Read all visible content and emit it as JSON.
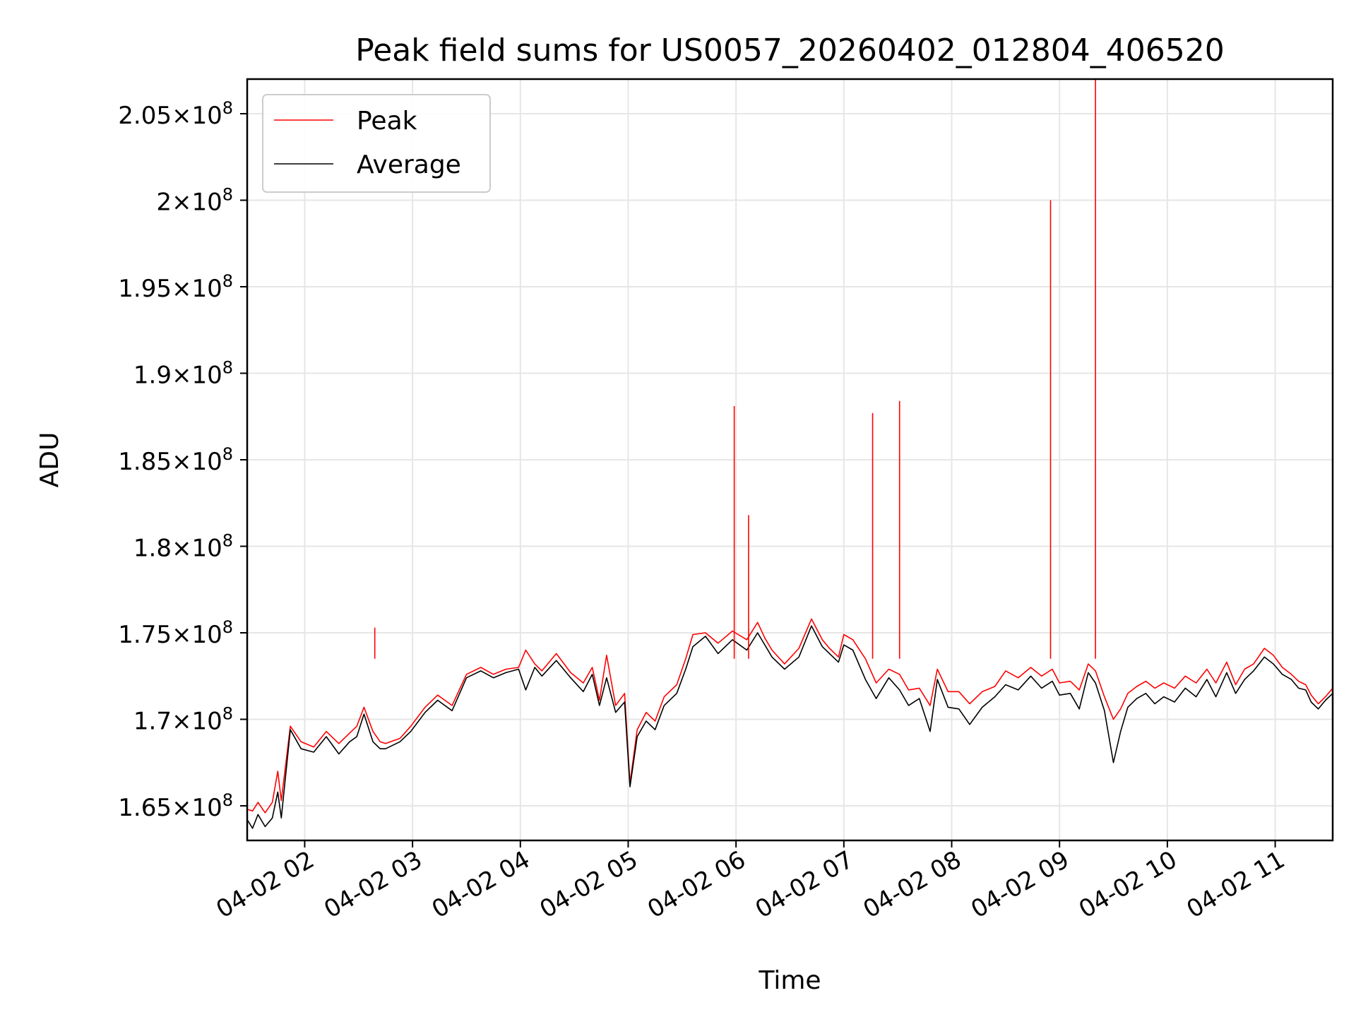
{
  "chart_data": {
    "type": "line",
    "title": "Peak field sums for US0057_20260402_012804_406520",
    "xlabel": "Time",
    "ylabel": "ADU",
    "xlim": [
      "04-02 01:28",
      "04-02 11:32"
    ],
    "ylim": [
      163000000,
      207000000
    ],
    "x_ticks": [
      {
        "value": "04-02 02:00",
        "label": "04-02 02"
      },
      {
        "value": "04-02 03:00",
        "label": "04-02 03"
      },
      {
        "value": "04-02 04:00",
        "label": "04-02 04"
      },
      {
        "value": "04-02 05:00",
        "label": "04-02 05"
      },
      {
        "value": "04-02 06:00",
        "label": "04-02 06"
      },
      {
        "value": "04-02 07:00",
        "label": "04-02 07"
      },
      {
        "value": "04-02 08:00",
        "label": "04-02 08"
      },
      {
        "value": "04-02 09:00",
        "label": "04-02 09"
      },
      {
        "value": "04-02 10:00",
        "label": "04-02 10"
      },
      {
        "value": "04-02 11:00",
        "label": "04-02 11"
      }
    ],
    "y_ticks": [
      {
        "value": 165000000,
        "mantissa": "1.65",
        "exponent": "8"
      },
      {
        "value": 170000000,
        "mantissa": "1.7",
        "exponent": "8"
      },
      {
        "value": 175000000,
        "mantissa": "1.75",
        "exponent": "8"
      },
      {
        "value": 180000000,
        "mantissa": "1.8",
        "exponent": "8"
      },
      {
        "value": 185000000,
        "mantissa": "1.85",
        "exponent": "8"
      },
      {
        "value": 190000000,
        "mantissa": "1.9",
        "exponent": "8"
      },
      {
        "value": 195000000,
        "mantissa": "1.95",
        "exponent": "8"
      },
      {
        "value": 200000000,
        "mantissa": "2",
        "exponent": "8"
      },
      {
        "value": 205000000,
        "mantissa": "2.05",
        "exponent": "8"
      }
    ],
    "grid": true,
    "legend_position": "top-left",
    "series": [
      {
        "name": "Peak",
        "color": "#ff0000",
        "x": [
          "04-02 01:28",
          "04-02 01:31",
          "04-02 01:34",
          "04-02 01:38",
          "04-02 01:42",
          "04-02 01:45",
          "04-02 01:47",
          "04-02 01:52",
          "04-02 01:58",
          "04-02 02:05",
          "04-02 02:12",
          "04-02 02:19",
          "04-02 02:25",
          "04-02 02:29",
          "04-02 02:33",
          "04-02 02:38",
          "04-02 02:42",
          "04-02 02:45",
          "04-02 02:53",
          "04-02 02:59",
          "04-02 03:07",
          "04-02 03:14",
          "04-02 03:22",
          "04-02 03:30",
          "04-02 03:38",
          "04-02 03:45",
          "04-02 03:52",
          "04-02 03:59",
          "04-02 04:03",
          "04-02 04:08",
          "04-02 04:12",
          "04-02 04:20",
          "04-02 04:28",
          "04-02 04:35",
          "04-02 04:40",
          "04-02 04:44",
          "04-02 04:48",
          "04-02 04:53",
          "04-02 04:58",
          "04-02 05:01",
          "04-02 05:05",
          "04-02 05:10",
          "04-02 05:15",
          "04-02 05:20",
          "04-02 05:27",
          "04-02 05:32",
          "04-02 05:36",
          "04-02 05:43",
          "04-02 05:50",
          "04-02 05:58",
          "04-02 06:06",
          "04-02 06:12",
          "04-02 06:16",
          "04-02 06:20",
          "04-02 06:27",
          "04-02 06:35",
          "04-02 06:42",
          "04-02 06:48",
          "04-02 06:52",
          "04-02 06:57",
          "04-02 07:00",
          "04-02 07:05",
          "04-02 07:12",
          "04-02 07:18",
          "04-02 07:25",
          "04-02 07:31",
          "04-02 07:36",
          "04-02 07:42",
          "04-02 07:48",
          "04-02 07:52",
          "04-02 07:58",
          "04-02 08:04",
          "04-02 08:10",
          "04-02 08:17",
          "04-02 08:24",
          "04-02 08:30",
          "04-02 08:37",
          "04-02 08:44",
          "04-02 08:50",
          "04-02 08:56",
          "04-02 09:00",
          "04-02 09:06",
          "04-02 09:11",
          "04-02 09:16",
          "04-02 09:20",
          "04-02 09:25",
          "04-02 09:30",
          "04-02 09:34",
          "04-02 09:38",
          "04-02 09:43",
          "04-02 09:48",
          "04-02 09:53",
          "04-02 09:58",
          "04-02 10:04",
          "04-02 10:10",
          "04-02 10:16",
          "04-02 10:22",
          "04-02 10:27",
          "04-02 10:33",
          "04-02 10:38",
          "04-02 10:43",
          "04-02 10:48",
          "04-02 10:54",
          "04-02 10:59",
          "04-02 11:04",
          "04-02 11:09",
          "04-02 11:13",
          "04-02 11:17",
          "04-02 11:20",
          "04-02 11:24",
          "04-02 11:28",
          "04-02 11:32"
        ],
        "y": [
          164800000,
          164700000,
          165200000,
          164600000,
          165200000,
          167000000,
          165300000,
          169600000,
          168700000,
          168400000,
          169300000,
          168600000,
          169200000,
          169600000,
          170700000,
          169300000,
          168700000,
          168600000,
          168900000,
          169600000,
          170700000,
          171400000,
          170800000,
          172600000,
          173000000,
          172600000,
          172900000,
          173000000,
          174000000,
          173200000,
          172800000,
          173800000,
          172700000,
          172100000,
          173000000,
          171100000,
          173700000,
          170800000,
          171500000,
          166300000,
          169400000,
          170400000,
          169900000,
          171300000,
          172000000,
          173500000,
          174900000,
          175000000,
          174400000,
          175100000,
          174600000,
          175600000,
          174700000,
          174000000,
          173200000,
          174100000,
          175800000,
          174600000,
          174100000,
          173600000,
          174900000,
          174600000,
          173500000,
          172100000,
          172900000,
          172600000,
          171700000,
          171800000,
          170800000,
          172900000,
          171600000,
          171600000,
          170900000,
          171600000,
          171900000,
          172800000,
          172400000,
          173000000,
          172500000,
          172900000,
          172100000,
          172200000,
          171700000,
          173200000,
          172800000,
          171300000,
          170000000,
          170600000,
          171500000,
          171900000,
          172200000,
          171800000,
          172100000,
          171800000,
          172500000,
          172100000,
          172900000,
          172100000,
          173300000,
          172000000,
          172900000,
          173200000,
          174100000,
          173700000,
          173000000,
          172600000,
          172200000,
          172000000,
          171400000,
          170900000,
          171300000,
          171800000
        ]
      },
      {
        "name": "Average",
        "color": "#000000",
        "x": [
          "04-02 01:28",
          "04-02 01:31",
          "04-02 01:34",
          "04-02 01:38",
          "04-02 01:42",
          "04-02 01:45",
          "04-02 01:47",
          "04-02 01:52",
          "04-02 01:58",
          "04-02 02:05",
          "04-02 02:12",
          "04-02 02:19",
          "04-02 02:25",
          "04-02 02:29",
          "04-02 02:33",
          "04-02 02:38",
          "04-02 02:42",
          "04-02 02:45",
          "04-02 02:53",
          "04-02 02:59",
          "04-02 03:07",
          "04-02 03:14",
          "04-02 03:22",
          "04-02 03:30",
          "04-02 03:38",
          "04-02 03:45",
          "04-02 03:52",
          "04-02 03:59",
          "04-02 04:03",
          "04-02 04:08",
          "04-02 04:12",
          "04-02 04:20",
          "04-02 04:28",
          "04-02 04:35",
          "04-02 04:40",
          "04-02 04:44",
          "04-02 04:48",
          "04-02 04:53",
          "04-02 04:58",
          "04-02 05:01",
          "04-02 05:05",
          "04-02 05:10",
          "04-02 05:15",
          "04-02 05:20",
          "04-02 05:27",
          "04-02 05:32",
          "04-02 05:36",
          "04-02 05:43",
          "04-02 05:50",
          "04-02 05:58",
          "04-02 06:06",
          "04-02 06:12",
          "04-02 06:16",
          "04-02 06:20",
          "04-02 06:27",
          "04-02 06:35",
          "04-02 06:42",
          "04-02 06:48",
          "04-02 06:52",
          "04-02 06:57",
          "04-02 07:00",
          "04-02 07:05",
          "04-02 07:12",
          "04-02 07:18",
          "04-02 07:25",
          "04-02 07:31",
          "04-02 07:36",
          "04-02 07:42",
          "04-02 07:48",
          "04-02 07:52",
          "04-02 07:58",
          "04-02 08:04",
          "04-02 08:10",
          "04-02 08:17",
          "04-02 08:24",
          "04-02 08:30",
          "04-02 08:37",
          "04-02 08:44",
          "04-02 08:50",
          "04-02 08:56",
          "04-02 09:00",
          "04-02 09:06",
          "04-02 09:11",
          "04-02 09:16",
          "04-02 09:20",
          "04-02 09:25",
          "04-02 09:30",
          "04-02 09:34",
          "04-02 09:38",
          "04-02 09:43",
          "04-02 09:48",
          "04-02 09:53",
          "04-02 09:58",
          "04-02 10:04",
          "04-02 10:10",
          "04-02 10:16",
          "04-02 10:22",
          "04-02 10:27",
          "04-02 10:33",
          "04-02 10:38",
          "04-02 10:43",
          "04-02 10:48",
          "04-02 10:54",
          "04-02 10:59",
          "04-02 11:04",
          "04-02 11:09",
          "04-02 11:13",
          "04-02 11:17",
          "04-02 11:20",
          "04-02 11:24",
          "04-02 11:28",
          "04-02 11:32"
        ],
        "y": [
          164200000,
          163700000,
          164500000,
          163800000,
          164300000,
          165800000,
          164300000,
          169400000,
          168300000,
          168100000,
          169000000,
          168000000,
          168700000,
          169000000,
          170300000,
          168700000,
          168300000,
          168300000,
          168700000,
          169300000,
          170400000,
          171100000,
          170500000,
          172400000,
          172800000,
          172400000,
          172700000,
          172900000,
          171700000,
          173000000,
          172500000,
          173400000,
          172400000,
          171600000,
          172600000,
          170800000,
          172400000,
          170400000,
          171000000,
          166100000,
          169000000,
          169900000,
          169400000,
          170800000,
          171500000,
          172900000,
          174200000,
          174800000,
          173800000,
          174600000,
          174000000,
          175000000,
          174300000,
          173600000,
          172900000,
          173600000,
          175400000,
          174200000,
          173800000,
          173300000,
          174300000,
          174000000,
          172300000,
          171200000,
          172400000,
          171700000,
          170800000,
          171200000,
          169300000,
          172300000,
          170700000,
          170600000,
          169700000,
          170700000,
          171300000,
          172000000,
          171700000,
          172500000,
          171800000,
          172200000,
          171400000,
          171500000,
          170600000,
          172700000,
          172100000,
          170500000,
          167500000,
          169300000,
          170700000,
          171200000,
          171500000,
          170900000,
          171300000,
          171000000,
          171800000,
          171300000,
          172300000,
          171300000,
          172700000,
          171500000,
          172300000,
          172800000,
          173600000,
          173200000,
          172600000,
          172300000,
          171800000,
          171700000,
          171000000,
          170600000,
          171100000,
          171500000
        ]
      }
    ],
    "peak_spikes": [
      {
        "x": "04-02 02:39",
        "y": 175300000
      },
      {
        "x": "04-02 05:59",
        "y": 188100000
      },
      {
        "x": "04-02 06:07",
        "y": 181800000
      },
      {
        "x": "04-02 07:16",
        "y": 187700000
      },
      {
        "x": "04-02 07:31",
        "y": 188400000
      },
      {
        "x": "04-02 08:55",
        "y": 200000000
      },
      {
        "x": "04-02 09:20",
        "y": 207000000
      }
    ]
  }
}
